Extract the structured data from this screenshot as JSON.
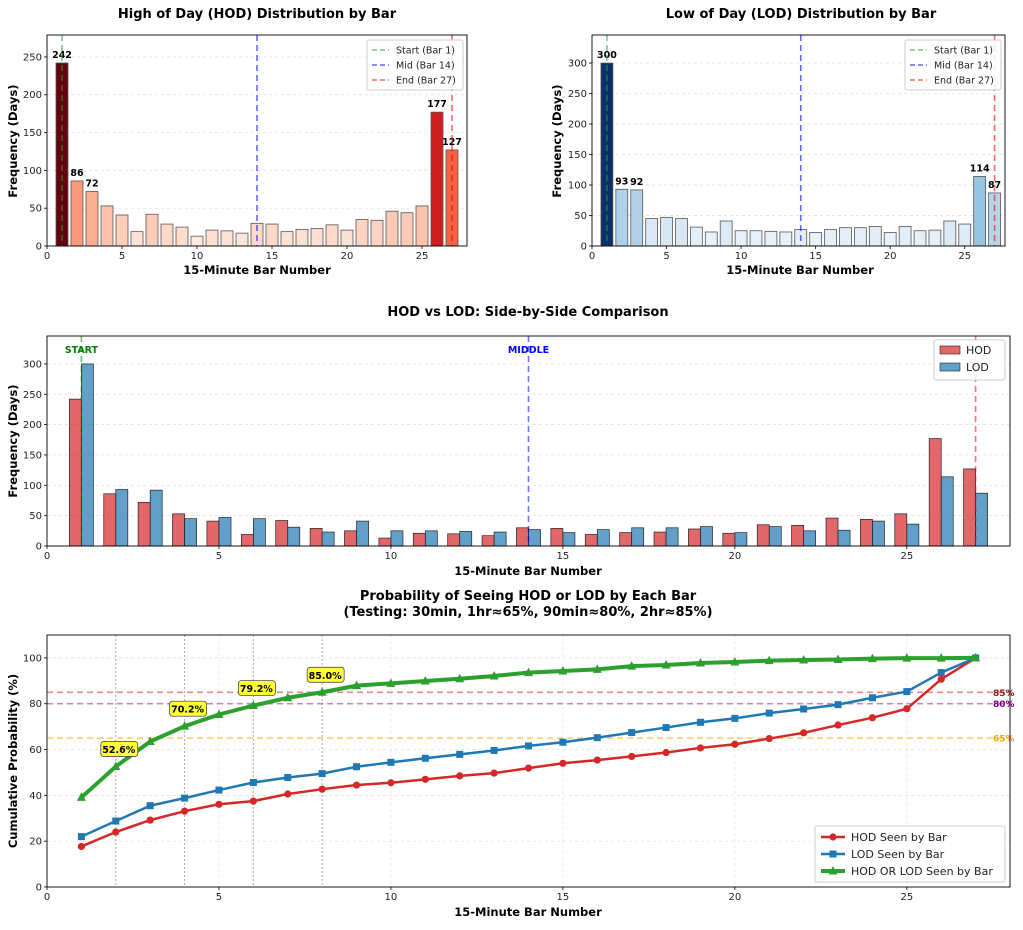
{
  "chart_data": [
    {
      "type": "bar",
      "title": "High of Day (HOD) Distribution by Bar",
      "xlabel": "15-Minute Bar Number",
      "ylabel": "Frequency (Days)",
      "categories": [
        1,
        2,
        3,
        4,
        5,
        6,
        7,
        8,
        9,
        10,
        11,
        12,
        13,
        14,
        15,
        16,
        17,
        18,
        19,
        20,
        21,
        22,
        23,
        24,
        25,
        26,
        27
      ],
      "values": [
        242,
        86,
        72,
        53,
        41,
        19,
        42,
        29,
        25,
        13,
        21,
        20,
        17,
        30,
        29,
        19,
        22,
        23,
        28,
        21,
        35,
        34,
        46,
        44,
        53,
        177,
        127
      ],
      "annotated_bars": [
        1,
        2,
        3,
        26,
        27
      ],
      "xlim": [
        0,
        28
      ],
      "ylim": [
        0,
        279
      ],
      "xticks": [
        0,
        5,
        10,
        15,
        20,
        25
      ],
      "yticks": [
        0,
        50,
        100,
        150,
        200,
        250
      ],
      "colormap": "reds",
      "grid": true,
      "legend_position": "top-right",
      "vlines": [
        {
          "x": 1,
          "label": "Start (Bar 1)",
          "color": "#2ca02c"
        },
        {
          "x": 14,
          "label": "Mid (Bar 14)",
          "color": "#0000ff"
        },
        {
          "x": 27,
          "label": "End (Bar 27)",
          "color": "#ff0000"
        }
      ]
    },
    {
      "type": "bar",
      "title": "Low of Day (LOD) Distribution by Bar",
      "xlabel": "15-Minute Bar Number",
      "ylabel": "Frequency (Days)",
      "categories": [
        1,
        2,
        3,
        4,
        5,
        6,
        7,
        8,
        9,
        10,
        11,
        12,
        13,
        14,
        15,
        16,
        17,
        18,
        19,
        20,
        21,
        22,
        23,
        24,
        25,
        26,
        27
      ],
      "values": [
        300,
        93,
        92,
        45,
        47,
        45,
        31,
        23,
        41,
        25,
        25,
        24,
        23,
        27,
        22,
        27,
        30,
        30,
        32,
        22,
        32,
        25,
        26,
        41,
        36,
        114,
        87
      ],
      "annotated_bars": [
        1,
        2,
        3,
        26,
        27
      ],
      "xlim": [
        0,
        27.7
      ],
      "ylim": [
        0,
        346
      ],
      "xticks": [
        0,
        5,
        10,
        15,
        20,
        25
      ],
      "yticks": [
        0,
        50,
        100,
        150,
        200,
        250,
        300
      ],
      "colormap": "blues",
      "grid": true,
      "legend_position": "top-right",
      "vlines": [
        {
          "x": 1,
          "label": "Start (Bar 1)",
          "color": "#2ca02c"
        },
        {
          "x": 14,
          "label": "Mid (Bar 14)",
          "color": "#0000ff"
        },
        {
          "x": 27,
          "label": "End (Bar 27)",
          "color": "#ff0000"
        }
      ]
    },
    {
      "type": "bar",
      "title": "HOD vs LOD: Side-by-Side Comparison",
      "xlabel": "15-Minute Bar Number",
      "ylabel": "Frequency (Days)",
      "categories": [
        1,
        2,
        3,
        4,
        5,
        6,
        7,
        8,
        9,
        10,
        11,
        12,
        13,
        14,
        15,
        16,
        17,
        18,
        19,
        20,
        21,
        22,
        23,
        24,
        25,
        26,
        27
      ],
      "series": [
        {
          "name": "HOD",
          "color": "#d62728",
          "values": [
            242,
            86,
            72,
            53,
            41,
            19,
            42,
            29,
            25,
            13,
            21,
            20,
            17,
            30,
            29,
            19,
            22,
            23,
            28,
            21,
            35,
            34,
            46,
            44,
            53,
            177,
            127
          ]
        },
        {
          "name": "LOD",
          "color": "#1f77b4",
          "values": [
            300,
            93,
            92,
            45,
            47,
            45,
            31,
            23,
            41,
            25,
            25,
            24,
            23,
            27,
            22,
            27,
            30,
            30,
            32,
            22,
            32,
            25,
            26,
            41,
            36,
            114,
            87
          ]
        }
      ],
      "xlim": [
        0,
        28
      ],
      "ylim": [
        0,
        346
      ],
      "xticks": [
        0,
        5,
        10,
        15,
        20,
        25
      ],
      "yticks": [
        0,
        50,
        100,
        150,
        200,
        250,
        300
      ],
      "grid": true,
      "legend_position": "top-right",
      "vlines": [
        {
          "x": 1,
          "label": "START",
          "color": "#008000"
        },
        {
          "x": 14,
          "label": "MIDDLE",
          "color": "#0000ff"
        },
        {
          "x": 27,
          "label": "",
          "color": "#ff0000"
        }
      ]
    },
    {
      "type": "line",
      "title": "Probability of Seeing HOD or LOD by Each Bar",
      "subtitle": "(Testing: 30min, 1hr≈65%, 90min≈80%, 2hr≈85%)",
      "xlabel": "15-Minute Bar Number",
      "ylabel": "Cumulative Probability (%)",
      "x": [
        1,
        2,
        3,
        4,
        5,
        6,
        7,
        8,
        9,
        10,
        11,
        12,
        13,
        14,
        15,
        16,
        17,
        18,
        19,
        20,
        21,
        22,
        23,
        24,
        25,
        26,
        27
      ],
      "series": [
        {
          "name": "HOD Seen by Bar",
          "color": "#d62728",
          "marker": "circle",
          "values": [
            17.7,
            24.0,
            29.2,
            33.1,
            36.1,
            37.5,
            40.6,
            42.7,
            44.5,
            45.5,
            47.0,
            48.5,
            49.7,
            51.9,
            54.0,
            55.4,
            57.0,
            58.7,
            60.7,
            62.3,
            64.8,
            67.3,
            70.7,
            73.9,
            77.8,
            90.7,
            100
          ]
        },
        {
          "name": "LOD Seen by Bar",
          "color": "#1f77b4",
          "marker": "square",
          "values": [
            22.0,
            28.8,
            35.5,
            38.8,
            42.3,
            45.6,
            47.8,
            49.5,
            52.5,
            54.4,
            56.2,
            57.9,
            59.6,
            61.6,
            63.2,
            65.2,
            67.4,
            69.6,
            71.9,
            73.6,
            75.9,
            77.7,
            79.6,
            82.6,
            85.3,
            93.6,
            100
          ]
        },
        {
          "name": "HOD OR LOD Seen by Bar",
          "color": "#2ca02c",
          "marker": "triangle",
          "values": [
            39.1,
            52.6,
            63.5,
            70.2,
            75.3,
            79.2,
            82.6,
            85.0,
            87.9,
            88.9,
            89.9,
            90.9,
            92.1,
            93.6,
            94.3,
            95.0,
            96.4,
            96.9,
            97.8,
            98.2,
            98.8,
            99.1,
            99.3,
            99.7,
            99.9,
            99.9,
            100
          ]
        }
      ],
      "annotations": [
        {
          "x": 2,
          "text": "52.6%"
        },
        {
          "x": 4,
          "text": "70.2%"
        },
        {
          "x": 6,
          "text": "79.2%"
        },
        {
          "x": 8,
          "text": "85.0%"
        }
      ],
      "hlines": [
        {
          "y": 85,
          "label": "85%",
          "color": "#d62728",
          "label_color": "#8b1a1a"
        },
        {
          "y": 80,
          "label": "80%",
          "color": "#9b30a0",
          "label_color": "#800080"
        },
        {
          "y": 65,
          "label": "65%",
          "color": "#ffa500",
          "label_color": "#ffa500"
        }
      ],
      "dotted_vlines": [
        2,
        4,
        6,
        8
      ],
      "xlim": [
        0,
        28
      ],
      "ylim": [
        0,
        110
      ],
      "xticks": [
        0,
        5,
        10,
        15,
        20,
        25
      ],
      "yticks": [
        0,
        20,
        40,
        60,
        80,
        100
      ],
      "grid": true,
      "legend_position": "lower-right"
    }
  ]
}
